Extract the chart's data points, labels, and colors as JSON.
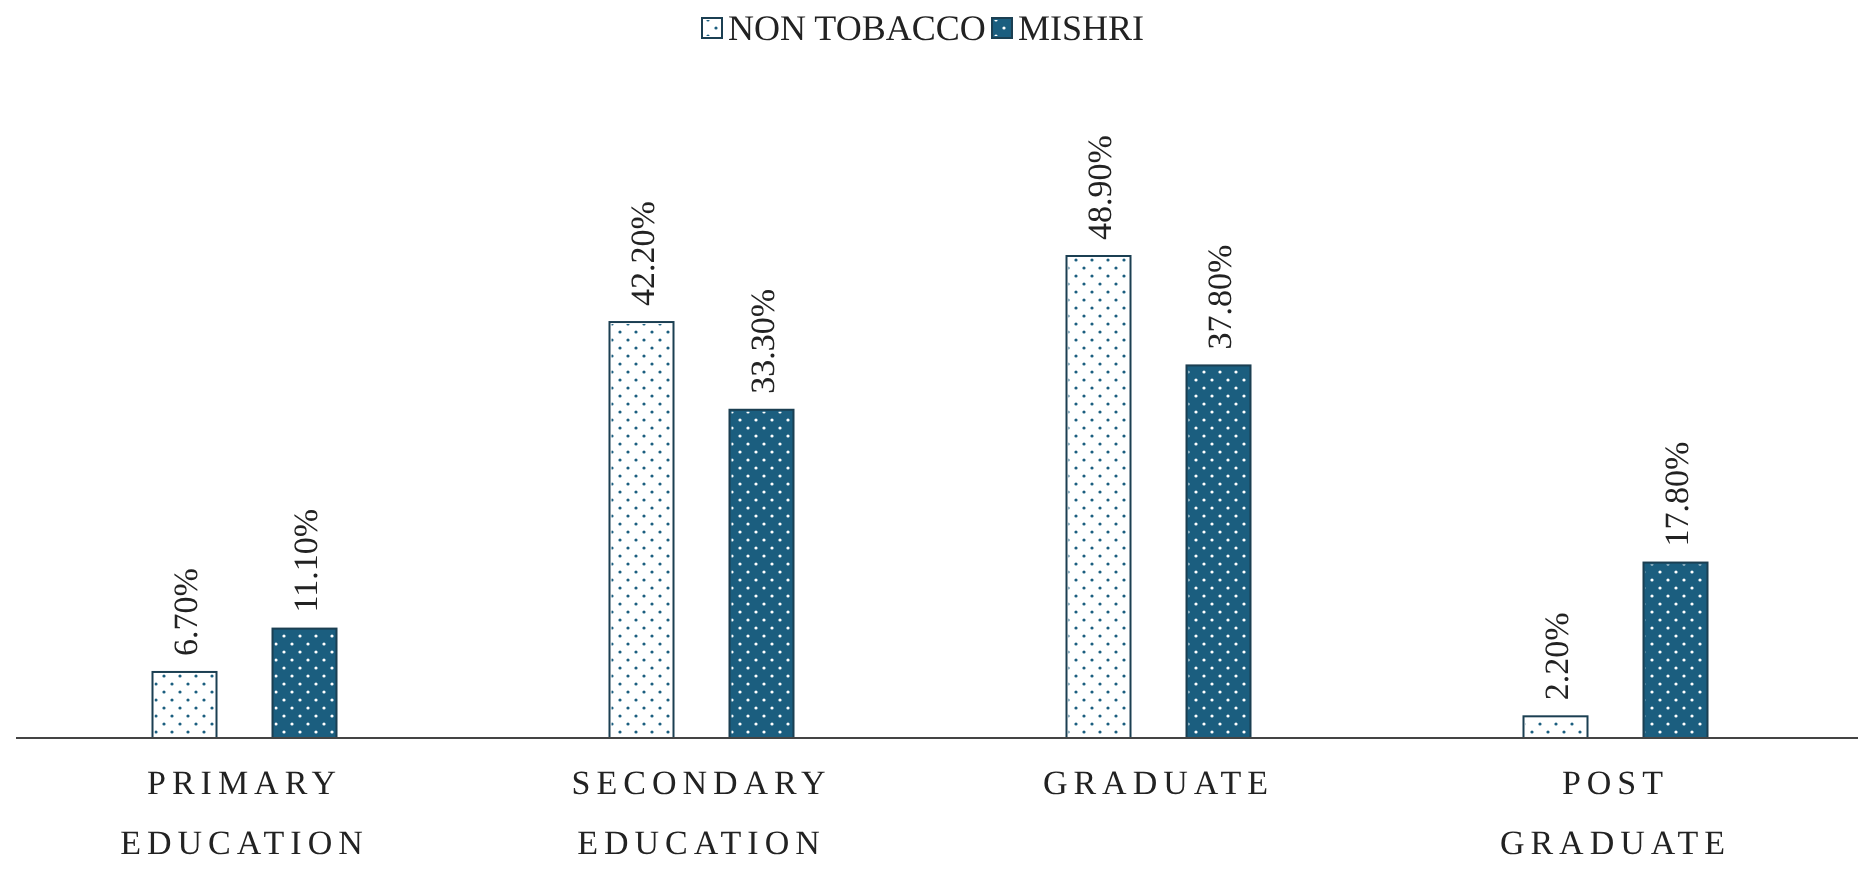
{
  "chart_data": {
    "type": "bar",
    "categories": [
      "PRIMARY EDUCATION",
      "SECONDARY EDUCATION",
      "GRADUATE",
      "POST GRADUATE"
    ],
    "series": [
      {
        "name": "NON TOBACCO",
        "color": "#ffffff",
        "values": [
          6.7,
          42.2,
          48.9,
          2.2
        ],
        "value_labels": [
          "6.70%",
          "42.20%",
          "48.90%",
          "2.20%"
        ]
      },
      {
        "name": "MISHRI",
        "color": "#1b5e7f",
        "values": [
          11.1,
          33.3,
          37.8,
          17.8
        ],
        "value_labels": [
          "11.10%",
          "33.30%",
          "37.80%",
          "17.80%"
        ]
      }
    ],
    "legend": "top"
  }
}
